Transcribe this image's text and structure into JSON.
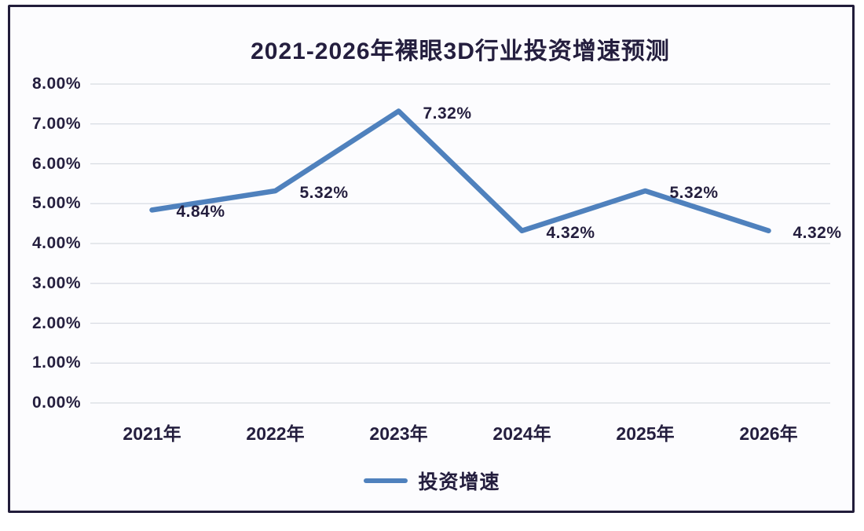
{
  "chart": {
    "title": "2021-2026年裸眼3D行业投资增速预测",
    "legend_label": "投资增速"
  },
  "chart_data": {
    "type": "line",
    "title": "2021-2026年裸眼3D行业投资增速预测",
    "categories": [
      "2021年",
      "2022年",
      "2023年",
      "2024年",
      "2025年",
      "2026年"
    ],
    "series": [
      {
        "name": "投资增速",
        "values": [
          4.84,
          5.32,
          7.32,
          4.32,
          5.32,
          4.32
        ]
      }
    ],
    "data_labels": [
      "4.84%",
      "5.32%",
      "7.32%",
      "4.32%",
      "5.32%",
      "4.32%"
    ],
    "xlabel": "",
    "ylabel": "",
    "ylim": [
      0,
      8
    ],
    "ytick_step": 1,
    "ytick_labels": [
      "0.00%",
      "1.00%",
      "2.00%",
      "3.00%",
      "4.00%",
      "5.00%",
      "6.00%",
      "7.00%",
      "8.00%"
    ],
    "grid": true,
    "legend": {
      "position": "bottom",
      "entries": [
        "投资增速"
      ]
    }
  },
  "colors": {
    "line": "#4f81bd",
    "text": "#241e3e",
    "gridline": "#d7dbe2",
    "frame_border": "#221d3a",
    "plot_background": "#fcfcfe"
  }
}
